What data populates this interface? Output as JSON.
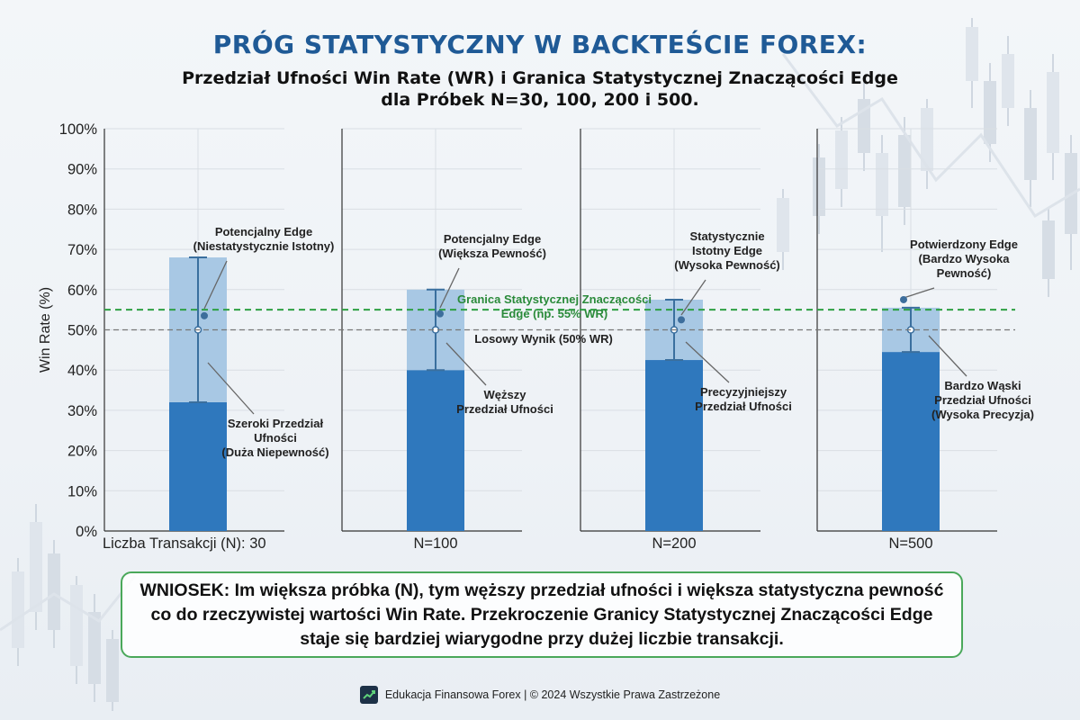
{
  "header": {
    "title": "PRÓG STATYSTYCZNY W BACKTEŚCIE FOREX:",
    "subtitle_line1": "Przedział Ufności Win Rate (WR) i Granica Statystycznej Znaczącości Edge",
    "subtitle_line2": "dla Próbek N=30, 100, 200 i 500."
  },
  "chart_data": {
    "type": "bar",
    "ylabel": "Win Rate (%)",
    "ylim": [
      0,
      100
    ],
    "yticks": [
      "0%",
      "10%",
      "20%",
      "30%",
      "40%",
      "50%",
      "60%",
      "70%",
      "80%",
      "90%",
      "100%"
    ],
    "grid": true,
    "panels": [
      {
        "label": "Liczba Transakcji (N): 30",
        "ci_low": 32,
        "ci_high": 68,
        "center": 50,
        "marker": 53.5,
        "annotations": [
          {
            "lines": [
              "Potencjalny Edge",
              "(Niestatystycznie Istotny)"
            ]
          },
          {
            "lines": [
              "Szeroki Przedział",
              "Ufności",
              "(Duża Niepewność)"
            ]
          }
        ]
      },
      {
        "label": "N=100",
        "ci_low": 40,
        "ci_high": 60,
        "center": 50,
        "marker": 54,
        "annotations": [
          {
            "lines": [
              "Potencjalny Edge",
              "(Większa Pewność)"
            ]
          },
          {
            "lines": [
              "Węższy",
              "Przedział Ufności"
            ]
          }
        ]
      },
      {
        "label": "N=200",
        "ci_low": 42.5,
        "ci_high": 57.5,
        "center": 50,
        "marker": 52.5,
        "annotations": [
          {
            "lines": [
              "Statystycznie",
              "Istotny Edge",
              "(Wysoka Pewność)"
            ]
          },
          {
            "lines": [
              "Precyzyjniejszy",
              "Przedział Ufności"
            ]
          }
        ]
      },
      {
        "label": "N=500",
        "ci_low": 44.5,
        "ci_high": 55.5,
        "center": 50,
        "marker": 57.5,
        "annotations": [
          {
            "lines": [
              "Potwierdzony Edge",
              "(Bardzo Wysoka",
              "Pewność)"
            ]
          },
          {
            "lines": [
              "Bardzo Wąski",
              "Przedział Ufności",
              "(Wysoka Precyzja)"
            ]
          }
        ]
      }
    ],
    "reference_lines": [
      {
        "value": 55,
        "label_lines": [
          "Granica Statystycznej Znaczącości",
          "Edge (np. 55% WR)"
        ],
        "color": "#2ea043",
        "style": "dashed"
      },
      {
        "value": 50,
        "label_lines": [
          "Losowy Wynik (50% WR)"
        ],
        "color": "#777777",
        "style": "dashed"
      }
    ],
    "colors": {
      "bar_dark": "#2f78bd",
      "bar_light": "#a8c8e4",
      "errorbar": "#3a6f9e",
      "marker": "#3d6e9c"
    }
  },
  "conclusion": {
    "text": "WNIOSEK: Im większa próbka (N), tym węższy przedział ufności i większa statystyczna pewność co do rzeczywistej wartości Win Rate. Przekroczenie Granicy Statystycznej Znaczącości Edge staje się bardziej wiarygodne przy dużej liczbie transakcji."
  },
  "footer": {
    "text": "Edukacja Finansowa Forex | © 2024 Wszystkie Prawa Zastrzeżone",
    "logo_icon": "chart-trend-logo-icon"
  }
}
